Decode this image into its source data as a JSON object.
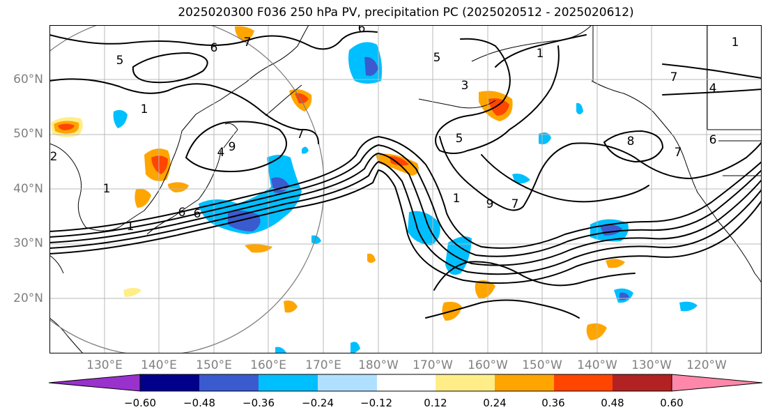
{
  "title": "2025020300 F036 250 hPa PV, precipitation PC (2025020512 - 2025020612)",
  "latitude_labels": [
    "60°N",
    "50°N",
    "40°N",
    "30°N",
    "20°N"
  ],
  "longitude_labels": [
    "130°E",
    "140°E",
    "150°E",
    "160°E",
    "170°E",
    "180°W",
    "170°W",
    "160°W",
    "150°W",
    "140°W",
    "130°W",
    "120°W"
  ],
  "pv_contour_labels": [
    "5",
    "6",
    "7",
    "6",
    "1",
    "4",
    "2",
    "6",
    "1",
    "6",
    "1",
    "8",
    "1",
    "7",
    "6",
    "4",
    "1",
    "5",
    "1",
    "7",
    "3",
    "7",
    "5",
    "9",
    "7",
    "9"
  ],
  "colorbar": {
    "tick_labels": [
      "−0.60",
      "−0.48",
      "−0.36",
      "−0.24",
      "−0.12",
      "0.12",
      "0.24",
      "0.36",
      "0.48",
      "0.60"
    ],
    "colors": [
      "#9932cc",
      "#00008b",
      "#3a5bd0",
      "#00bfff",
      "#b0e0ff",
      "#ffffff",
      "#ffee88",
      "#ffa500",
      "#ff4500",
      "#b22222",
      "#ff88aa"
    ]
  }
}
